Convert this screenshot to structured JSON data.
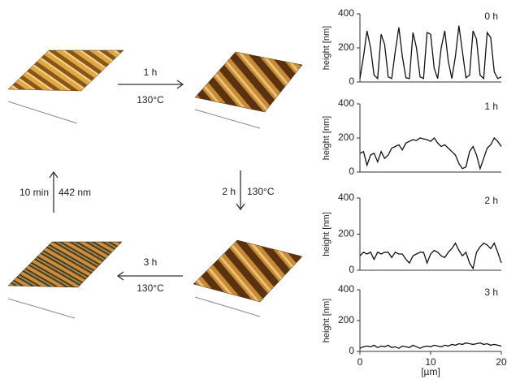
{
  "diagram": {
    "steps": [
      {
        "time": "1 h",
        "temp": "130°C"
      },
      {
        "time": "2 h",
        "temp": "130°C"
      },
      {
        "time": "3 h",
        "temp": "130°C"
      },
      {
        "time": "10 min",
        "temp": "442 nm"
      }
    ]
  },
  "chart_data": [
    {
      "type": "line",
      "title": "0 h",
      "y_label": "height [nm]",
      "x": [
        0,
        0.5,
        1,
        1.5,
        2,
        2.5,
        3,
        3.5,
        4,
        4.5,
        5,
        5.5,
        6,
        6.5,
        7,
        7.5,
        8,
        8.5,
        9,
        9.5,
        10,
        10.5,
        11,
        11.5,
        12,
        12.5,
        13,
        13.5,
        14,
        14.5,
        15,
        15.5,
        16,
        16.5,
        17,
        17.5,
        18,
        18.5,
        19,
        19.5,
        20
      ],
      "series": [
        {
          "color": "#111111",
          "values": [
            20,
            150,
            300,
            200,
            40,
            20,
            280,
            220,
            30,
            20,
            180,
            320,
            150,
            25,
            20,
            290,
            200,
            30,
            20,
            290,
            280,
            80,
            20,
            200,
            300,
            120,
            20,
            150,
            330,
            180,
            25,
            40,
            300,
            250,
            40,
            20,
            290,
            260,
            60,
            20,
            30
          ]
        }
      ],
      "xlim": [
        0,
        20
      ],
      "ylim": [
        0,
        400
      ],
      "yticks": [
        0,
        200,
        400
      ]
    },
    {
      "type": "line",
      "title": "1 h",
      "y_label": "height [nm]",
      "x": [
        0,
        0.5,
        1,
        1.5,
        2,
        2.5,
        3,
        3.5,
        4,
        4.5,
        5,
        5.5,
        6,
        6.5,
        7,
        7.5,
        8,
        8.5,
        9,
        9.5,
        10,
        10.5,
        11,
        11.5,
        12,
        12.5,
        13,
        13.5,
        14,
        14.5,
        15,
        15.5,
        16,
        16.5,
        17,
        17.5,
        18,
        18.5,
        19,
        19.5,
        20
      ],
      "series": [
        {
          "color": "#111111",
          "values": [
            110,
            120,
            40,
            100,
            110,
            60,
            120,
            80,
            100,
            140,
            150,
            160,
            130,
            170,
            180,
            190,
            185,
            200,
            195,
            190,
            180,
            200,
            170,
            150,
            160,
            140,
            120,
            100,
            50,
            20,
            30,
            120,
            150,
            100,
            20,
            80,
            140,
            160,
            200,
            180,
            150
          ]
        }
      ],
      "xlim": [
        0,
        20
      ],
      "ylim": [
        0,
        400
      ],
      "yticks": [
        0,
        200,
        400
      ]
    },
    {
      "type": "line",
      "title": "2 h",
      "y_label": "height [nm]",
      "x": [
        0,
        0.5,
        1,
        1.5,
        2,
        2.5,
        3,
        3.5,
        4,
        4.5,
        5,
        5.5,
        6,
        6.5,
        7,
        7.5,
        8,
        8.5,
        9,
        9.5,
        10,
        10.5,
        11,
        11.5,
        12,
        12.5,
        13,
        13.5,
        14,
        14.5,
        15,
        15.5,
        16,
        16.5,
        17,
        17.5,
        18,
        18.5,
        19,
        19.5,
        20
      ],
      "series": [
        {
          "color": "#111111",
          "values": [
            80,
            100,
            90,
            100,
            60,
            100,
            90,
            100,
            100,
            70,
            100,
            90,
            90,
            60,
            40,
            80,
            90,
            100,
            100,
            40,
            90,
            110,
            100,
            80,
            70,
            100,
            120,
            150,
            110,
            80,
            100,
            40,
            10,
            100,
            130,
            150,
            140,
            120,
            150,
            100,
            40
          ]
        }
      ],
      "xlim": [
        0,
        20
      ],
      "ylim": [
        0,
        400
      ],
      "yticks": [
        0,
        200,
        400
      ]
    },
    {
      "type": "line",
      "title": "3 h",
      "y_label": "height [nm]",
      "x_label": "[µm]",
      "x": [
        0,
        0.5,
        1,
        1.5,
        2,
        2.5,
        3,
        3.5,
        4,
        4.5,
        5,
        5.5,
        6,
        6.5,
        7,
        7.5,
        8,
        8.5,
        9,
        9.5,
        10,
        10.5,
        11,
        11.5,
        12,
        12.5,
        13,
        13.5,
        14,
        14.5,
        15,
        15.5,
        16,
        16.5,
        17,
        17.5,
        18,
        18.5,
        19,
        19.5,
        20
      ],
      "series": [
        {
          "color": "#111111",
          "values": [
            20,
            30,
            35,
            30,
            40,
            25,
            35,
            30,
            40,
            25,
            30,
            20,
            35,
            30,
            25,
            40,
            30,
            20,
            30,
            35,
            30,
            40,
            35,
            30,
            40,
            35,
            45,
            40,
            50,
            45,
            55,
            50,
            45,
            50,
            55,
            45,
            50,
            40,
            45,
            40,
            35
          ]
        }
      ],
      "xlim": [
        0,
        20
      ],
      "ylim": [
        0,
        400
      ],
      "yticks": [
        0,
        200,
        400
      ],
      "xticks": [
        0,
        10,
        20
      ]
    }
  ]
}
